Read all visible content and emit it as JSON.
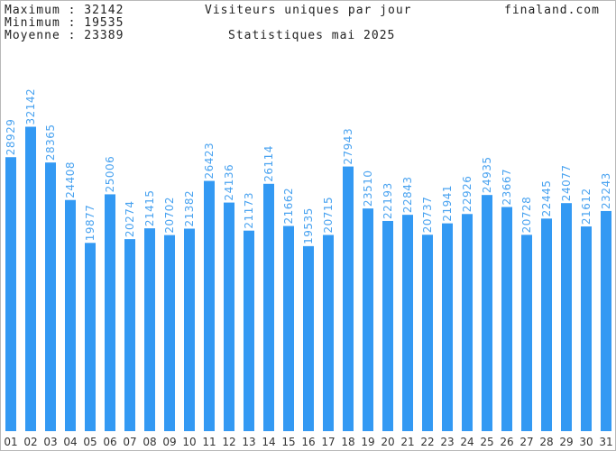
{
  "header": {
    "max_label": "Maximum : 32142",
    "min_label": "Minimum : 19535",
    "avg_label": "Moyenne : 23389",
    "title": "Visiteurs uniques par jour",
    "subtitle": "Statistiques mai 2025",
    "site": "finaland.com"
  },
  "colors": {
    "bar": "#3399f3",
    "value_label": "#4aa3f0",
    "background": "#ffffff"
  },
  "chart_data": {
    "type": "bar",
    "title": "Visiteurs uniques par jour",
    "subtitle": "Statistiques mai 2025",
    "categories": [
      "01",
      "02",
      "03",
      "04",
      "05",
      "06",
      "07",
      "08",
      "09",
      "10",
      "11",
      "12",
      "13",
      "14",
      "15",
      "16",
      "17",
      "18",
      "19",
      "20",
      "21",
      "22",
      "23",
      "24",
      "25",
      "26",
      "27",
      "28",
      "29",
      "30",
      "31"
    ],
    "values": [
      28929,
      32142,
      28365,
      24408,
      19877,
      25006,
      20274,
      21415,
      20702,
      21382,
      26423,
      24136,
      21173,
      26114,
      21662,
      19535,
      20715,
      27943,
      23510,
      22193,
      22843,
      20737,
      21941,
      22926,
      24935,
      23667,
      20728,
      22445,
      24077,
      21612,
      23243
    ],
    "ylim": [
      0,
      40000
    ],
    "grid": false,
    "show_value_labels": true
  }
}
